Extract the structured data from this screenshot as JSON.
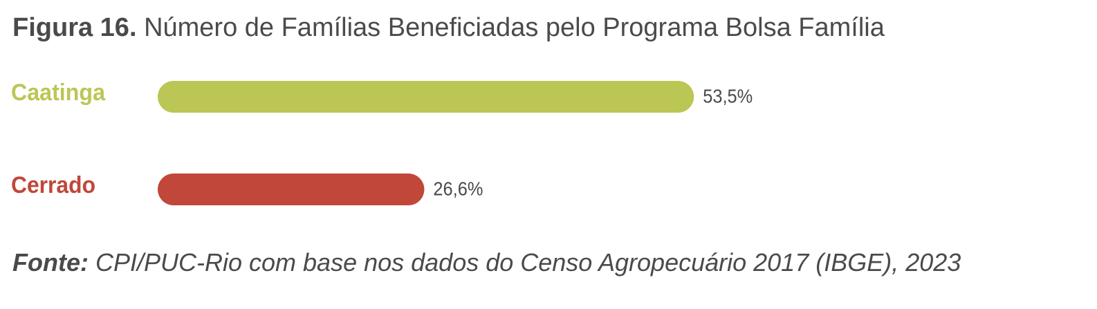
{
  "chart_data": {
    "type": "bar",
    "orientation": "horizontal",
    "title_label": "Figura 16.",
    "title": "Número de Famílias Beneficiadas pelo Programa Bolsa Família",
    "categories": [
      "Caatinga",
      "Cerrado"
    ],
    "values": [
      53.5,
      26.6
    ],
    "value_labels": [
      "53,5%",
      "26,6%"
    ],
    "colors": [
      "#bcc654",
      "#c0473a"
    ],
    "source_label": "Fonte:",
    "source": "CPI/PUC-Rio com base nos dados do Censo Agropecuário 2017 (IBGE), 2023"
  }
}
